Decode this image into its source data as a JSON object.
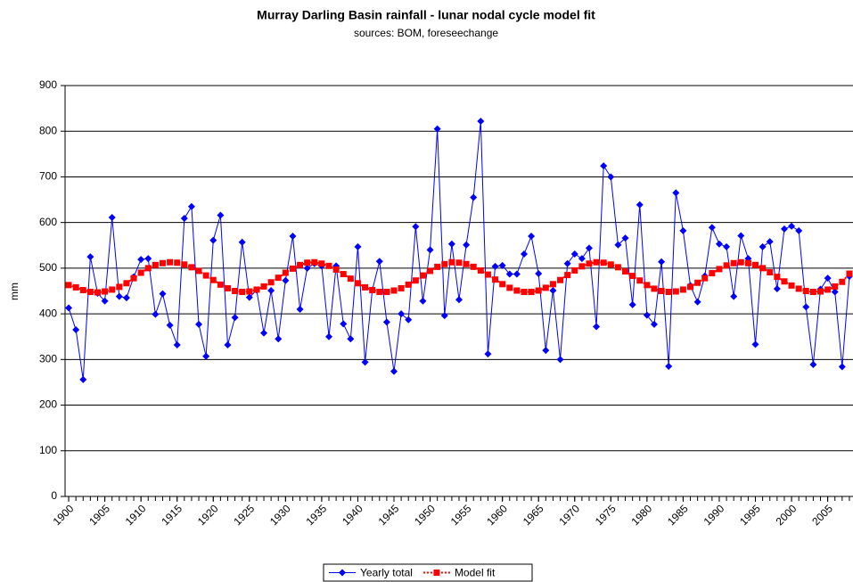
{
  "chart_data": {
    "type": "line",
    "title": "Murray Darling Basin rainfall - lunar nodal cycle model fit",
    "subtitle": "sources: BOM, foreseechange",
    "y_label": "mm",
    "x": [
      1900,
      1901,
      1902,
      1903,
      1904,
      1905,
      1906,
      1907,
      1908,
      1909,
      1910,
      1911,
      1912,
      1913,
      1914,
      1915,
      1916,
      1917,
      1918,
      1919,
      1920,
      1921,
      1922,
      1923,
      1924,
      1925,
      1926,
      1927,
      1928,
      1929,
      1930,
      1931,
      1932,
      1933,
      1934,
      1935,
      1936,
      1937,
      1938,
      1939,
      1940,
      1941,
      1942,
      1943,
      1944,
      1945,
      1946,
      1947,
      1948,
      1949,
      1950,
      1951,
      1952,
      1953,
      1954,
      1955,
      1956,
      1957,
      1958,
      1959,
      1960,
      1961,
      1962,
      1963,
      1964,
      1965,
      1966,
      1967,
      1968,
      1969,
      1970,
      1971,
      1972,
      1973,
      1974,
      1975,
      1976,
      1977,
      1978,
      1979,
      1980,
      1981,
      1982,
      1983,
      1984,
      1985,
      1986,
      1987,
      1988,
      1989,
      1990,
      1991,
      1992,
      1993,
      1994,
      1995,
      1996,
      1997,
      1998,
      1999,
      2000,
      2001,
      2002,
      2003,
      2004,
      2005,
      2006,
      2007,
      2008
    ],
    "xlim": [
      1899.5,
      2008.5
    ],
    "xticks": [
      1900,
      1905,
      1910,
      1915,
      1920,
      1925,
      1930,
      1935,
      1940,
      1945,
      1950,
      1955,
      1960,
      1965,
      1970,
      1975,
      1980,
      1985,
      1990,
      1995,
      2000,
      2005
    ],
    "ylim": [
      0,
      900
    ],
    "yticks": [
      0,
      100,
      200,
      300,
      400,
      500,
      600,
      700,
      800,
      900
    ],
    "grid": true,
    "legend": "bottom",
    "series": [
      {
        "name": "Yearly total",
        "color": "#0000ff",
        "marker": "diamond",
        "line": "solid",
        "values": [
          413,
          365,
          256,
          525,
          445,
          428,
          611,
          438,
          435,
          481,
          519,
          521,
          399,
          444,
          375,
          332,
          609,
          635,
          377,
          307,
          561,
          616,
          332,
          392,
          557,
          436,
          452,
          358,
          451,
          345,
          473,
          570,
          410,
          500,
          510,
          505,
          350,
          505,
          378,
          345,
          547,
          294,
          452,
          515,
          382,
          274,
          400,
          387,
          591,
          428,
          540,
          805,
          396,
          553,
          431,
          551,
          655,
          822,
          312,
          504,
          506,
          487,
          487,
          531,
          570,
          488,
          320,
          451,
          300,
          510,
          531,
          521,
          544,
          372,
          724,
          700,
          551,
          566,
          420,
          639,
          397,
          377,
          514,
          285,
          665,
          582,
          462,
          426,
          483,
          589,
          553,
          547,
          438,
          571,
          521,
          333,
          547,
          558,
          455,
          586,
          592,
          582,
          415,
          289,
          454,
          478,
          448,
          284,
          482
        ]
      },
      {
        "name": "Model fit",
        "color": "#ff0000",
        "marker": "square",
        "line": "dotted",
        "values": [
          463,
          458,
          452,
          448,
          447,
          449,
          453,
          459,
          467,
          478,
          490,
          500,
          507,
          511,
          513,
          512,
          508,
          502,
          494,
          484,
          474,
          464,
          456,
          450,
          448,
          449,
          453,
          460,
          469,
          479,
          490,
          499,
          507,
          512,
          513,
          510,
          505,
          497,
          487,
          477,
          467,
          458,
          452,
          448,
          448,
          451,
          456,
          464,
          473,
          484,
          494,
          503,
          509,
          513,
          512,
          509,
          503,
          495,
          486,
          475,
          465,
          457,
          451,
          448,
          448,
          451,
          457,
          465,
          474,
          485,
          495,
          504,
          510,
          513,
          512,
          508,
          502,
          493,
          483,
          473,
          463,
          455,
          450,
          448,
          449,
          453,
          459,
          468,
          478,
          489,
          498,
          506,
          511,
          513,
          511,
          507,
          500,
          491,
          481,
          471,
          462,
          455,
          450,
          448,
          449,
          453,
          460,
          470,
          488
        ]
      }
    ]
  }
}
